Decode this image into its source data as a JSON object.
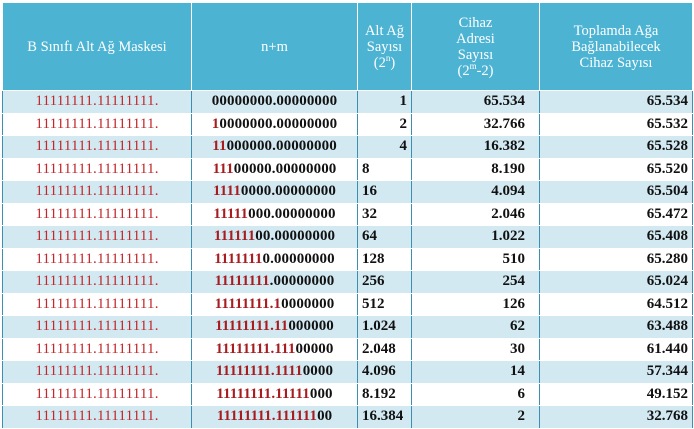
{
  "headers": {
    "mask": "B Sınıfı Alt Ağ Maskesi",
    "nm": "n+m",
    "subnet": [
      "Alt Ağ",
      "Sayısı",
      "(2",
      "n",
      ")"
    ],
    "device": [
      "Cihaz",
      "Adresi",
      "Sayısı",
      "(2",
      "m",
      "-2)"
    ],
    "total": [
      "Toplamda Ağa",
      "Bağlanabilecek",
      "Cihaz Sayısı"
    ]
  },
  "rows": [
    {
      "mask": "11111111.11111111.",
      "nm_red": "",
      "nm_rest": "00000000.00000000",
      "subnets": "1",
      "devices": "65.534",
      "total": "65.534"
    },
    {
      "mask": "11111111.11111111.",
      "nm_red": "1",
      "nm_rest": "0000000.00000000",
      "subnets": "2",
      "devices": "32.766",
      "total": "65.532"
    },
    {
      "mask": "11111111.11111111.",
      "nm_red": "11",
      "nm_rest": "000000.00000000",
      "subnets": "4",
      "devices": "16.382",
      "total": "65.528"
    },
    {
      "mask": "11111111.11111111.",
      "nm_red": "111",
      "nm_rest": "00000.00000000",
      "subnets": "8",
      "devices": "8.190",
      "total": "65.520"
    },
    {
      "mask": "11111111.11111111.",
      "nm_red": "1111",
      "nm_rest": "0000.00000000",
      "subnets": "16",
      "devices": "4.094",
      "total": "65.504"
    },
    {
      "mask": "11111111.11111111.",
      "nm_red": "11111",
      "nm_rest": "000.00000000",
      "subnets": "32",
      "devices": "2.046",
      "total": "65.472"
    },
    {
      "mask": "11111111.11111111.",
      "nm_red": "111111",
      "nm_rest": "00.00000000",
      "subnets": "64",
      "devices": "1.022",
      "total": "65.408"
    },
    {
      "mask": "11111111.11111111.",
      "nm_red": "1111111",
      "nm_rest": "0.00000000",
      "subnets": "128",
      "devices": "510",
      "total": "65.280"
    },
    {
      "mask": "11111111.11111111.",
      "nm_red": "11111111",
      "nm_rest": ".00000000",
      "subnets": "256",
      "devices": "254",
      "total": "65.024"
    },
    {
      "mask": "11111111.11111111.",
      "nm_red": "11111111.1",
      "nm_rest": "0000000",
      "subnets": "512",
      "devices": "126",
      "total": "64.512"
    },
    {
      "mask": "11111111.11111111.",
      "nm_red": "11111111.11",
      "nm_rest": "000000",
      "subnets": "1.024",
      "devices": "62",
      "total": "63.488"
    },
    {
      "mask": "11111111.11111111.",
      "nm_red": "11111111.111",
      "nm_rest": "00000",
      "subnets": "2.048",
      "devices": "30",
      "total": "61.440"
    },
    {
      "mask": "11111111.11111111.",
      "nm_red": "11111111.1111",
      "nm_rest": "0000",
      "subnets": "4.096",
      "devices": "14",
      "total": "57.344"
    },
    {
      "mask": "11111111.11111111.",
      "nm_red": "11111111.11111",
      "nm_rest": "000",
      "subnets": "8.192",
      "devices": "6",
      "total": "49.152"
    },
    {
      "mask": "11111111.11111111.",
      "nm_red": "11111111.111111",
      "nm_rest": "00",
      "subnets": "16.384",
      "devices": "2",
      "total": "32.768"
    }
  ]
}
